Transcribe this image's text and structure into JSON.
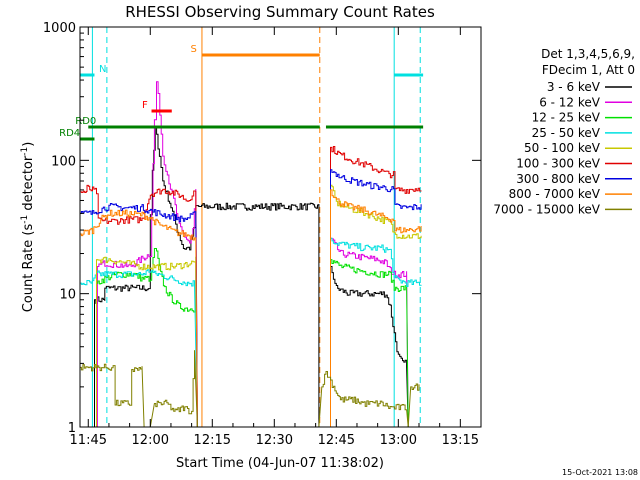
{
  "chart_data": {
    "type": "line",
    "title": "RHESSI Observing Summary Count Rates",
    "xlabel": "Start Time (04-Jun-07 11:38:02)",
    "ylabel_main": "Count Rate (s",
    "ylabel_sup1": "-1",
    "ylabel_mid": " detector",
    "ylabel_sup2": "-1",
    "ylabel_end": ")",
    "y_scale": "log",
    "ylim": [
      1,
      1000
    ],
    "xlim_minutes": [
      -17,
      80
    ],
    "x_ticks": [
      {
        "m": -15,
        "label": "11:45"
      },
      {
        "m": 0,
        "label": "12:00"
      },
      {
        "m": 15,
        "label": "12:15"
      },
      {
        "m": 30,
        "label": "12:30"
      },
      {
        "m": 45,
        "label": "12:45"
      },
      {
        "m": 60,
        "label": "13:00"
      },
      {
        "m": 75,
        "label": "13:15"
      }
    ],
    "y_tick_labels": [
      {
        "v": 1,
        "label": "1"
      },
      {
        "v": 10,
        "label": "10"
      },
      {
        "v": 100,
        "label": "100"
      },
      {
        "v": 1000,
        "label": "1000"
      }
    ],
    "legend_title": [
      "Det 1,3,4,5,6,9,",
      "FDecim 1, Att 0"
    ],
    "legend_placement": "right",
    "series": [
      {
        "name": "3 - 6 keV",
        "color": "#000000",
        "points": [
          [
            -17,
            1
          ],
          [
            -13.5,
            1
          ],
          [
            -13.5,
            9
          ],
          [
            -11,
            9
          ],
          [
            -11,
            11
          ],
          [
            -5,
            11
          ],
          [
            -5,
            11
          ],
          [
            -0.5,
            11
          ],
          [
            0,
            40
          ],
          [
            0.5,
            80
          ],
          [
            1.2,
            175
          ],
          [
            2.2,
            110
          ],
          [
            3,
            70
          ],
          [
            5,
            45
          ],
          [
            6.5,
            30
          ],
          [
            8,
            22
          ],
          [
            9.5,
            22
          ],
          [
            10.5,
            30
          ],
          [
            11,
            45
          ],
          [
            40.8,
            45
          ],
          [
            40.8,
            1
          ],
          [
            43.6,
            1
          ],
          [
            43.6,
            16
          ],
          [
            45,
            11
          ],
          [
            48,
            10
          ],
          [
            52,
            10
          ],
          [
            57,
            10
          ],
          [
            58,
            8
          ],
          [
            59,
            5
          ],
          [
            60,
            3.4
          ],
          [
            61,
            3
          ],
          [
            62,
            3
          ],
          [
            62.4,
            1
          ]
        ]
      },
      {
        "name": "6 - 12 keV",
        "color": "#e000e0",
        "points": [
          [
            -17,
            1
          ],
          [
            -12.8,
            1
          ],
          [
            -12.8,
            16
          ],
          [
            -11,
            17
          ],
          [
            -5,
            16
          ],
          [
            0,
            20
          ],
          [
            1,
            200
          ],
          [
            1.5,
            390
          ],
          [
            2.3,
            230
          ],
          [
            3,
            110
          ],
          [
            4.5,
            70
          ],
          [
            6,
            45
          ],
          [
            7,
            32
          ],
          [
            8,
            28
          ],
          [
            9.5,
            24
          ],
          [
            10.3,
            30
          ],
          [
            11,
            60
          ],
          [
            11.4,
            1
          ],
          [
            40.8,
            1
          ],
          [
            43.6,
            1
          ],
          [
            43.6,
            26
          ],
          [
            46,
            20
          ],
          [
            50,
            19
          ],
          [
            55,
            18
          ],
          [
            57,
            17
          ],
          [
            58,
            15
          ],
          [
            59,
            14
          ],
          [
            61,
            14
          ],
          [
            62,
            14
          ],
          [
            62.4,
            1
          ]
        ]
      },
      {
        "name": "12 - 25 keV",
        "color": "#00e000",
        "points": [
          [
            -17,
            1
          ],
          [
            -13,
            1
          ],
          [
            -13,
            12
          ],
          [
            -11,
            13
          ],
          [
            -8,
            14
          ],
          [
            -4,
            14
          ],
          [
            -2,
            13
          ],
          [
            -0.3,
            13
          ],
          [
            0,
            12
          ],
          [
            1,
            22
          ],
          [
            1.5,
            20
          ],
          [
            2.5,
            14
          ],
          [
            3.5,
            11
          ],
          [
            5,
            9.3
          ],
          [
            7,
            8
          ],
          [
            9,
            7.7
          ],
          [
            10.5,
            7.7
          ],
          [
            11,
            20
          ],
          [
            11.4,
            1
          ],
          [
            40.8,
            1
          ],
          [
            43.6,
            1
          ],
          [
            43.6,
            18
          ],
          [
            46,
            16
          ],
          [
            50,
            15
          ],
          [
            56,
            14
          ],
          [
            58,
            14
          ],
          [
            59,
            11
          ],
          [
            62,
            11
          ],
          [
            62.4,
            1
          ]
        ]
      },
      {
        "name": "25 - 50 keV",
        "color": "#00e0e0",
        "points": [
          [
            -17,
            12
          ],
          [
            -14,
            12
          ],
          [
            -13,
            14
          ],
          [
            -10,
            14
          ],
          [
            -6,
            14
          ],
          [
            -2,
            14
          ],
          [
            0,
            15
          ],
          [
            1,
            14
          ],
          [
            2,
            14
          ],
          [
            5,
            13
          ],
          [
            9,
            12
          ],
          [
            10.7,
            12
          ],
          [
            11.4,
            1
          ],
          [
            40.8,
            1
          ],
          [
            43.6,
            1
          ],
          [
            43.6,
            26
          ],
          [
            45,
            24
          ],
          [
            48,
            23
          ],
          [
            52,
            22
          ],
          [
            56,
            22
          ],
          [
            58,
            21
          ],
          [
            59,
            13
          ],
          [
            62,
            12
          ],
          [
            64,
            12
          ],
          [
            65.5,
            12
          ]
        ]
      },
      {
        "name": "50 - 100 keV",
        "color": "#c8c800",
        "points": [
          [
            -17,
            1
          ],
          [
            -13,
            1
          ],
          [
            -13,
            18
          ],
          [
            -10,
            18
          ],
          [
            -6,
            17
          ],
          [
            -2,
            16
          ],
          [
            0,
            16
          ],
          [
            2,
            16
          ],
          [
            6,
            16
          ],
          [
            10,
            17
          ],
          [
            11,
            17
          ],
          [
            11.4,
            1
          ],
          [
            40.8,
            1
          ],
          [
            43.6,
            1
          ],
          [
            43.6,
            65
          ],
          [
            45,
            48
          ],
          [
            48,
            44
          ],
          [
            52,
            40
          ],
          [
            56,
            36
          ],
          [
            58,
            34
          ],
          [
            59,
            28
          ],
          [
            62,
            27
          ],
          [
            65.5,
            27
          ]
        ]
      },
      {
        "name": "100 - 300 keV",
        "color": "#e00000",
        "points": [
          [
            -17,
            58
          ],
          [
            -15.5,
            58
          ],
          [
            -15.3,
            62
          ],
          [
            -13,
            58
          ],
          [
            -12.6,
            35
          ],
          [
            -9,
            35
          ],
          [
            -5,
            36
          ],
          [
            -2,
            36
          ],
          [
            0,
            56
          ],
          [
            3,
            60
          ],
          [
            5,
            58
          ],
          [
            7,
            55
          ],
          [
            9,
            50
          ],
          [
            10.5,
            58
          ],
          [
            11,
            58
          ],
          [
            11.4,
            1
          ],
          [
            40.8,
            1
          ],
          [
            43.6,
            1
          ],
          [
            43.6,
            125
          ],
          [
            46,
            110
          ],
          [
            49,
            100
          ],
          [
            53,
            90
          ],
          [
            57,
            80
          ],
          [
            58.8,
            78
          ],
          [
            59.2,
            60
          ],
          [
            62,
            60
          ],
          [
            65.5,
            62
          ]
        ]
      },
      {
        "name": "300 - 800 keV",
        "color": "#0000e0",
        "points": [
          [
            -17,
            40
          ],
          [
            -14,
            40
          ],
          [
            -13,
            42
          ],
          [
            -10,
            45
          ],
          [
            -6,
            44
          ],
          [
            -2,
            44
          ],
          [
            0,
            42
          ],
          [
            2,
            40
          ],
          [
            5,
            38
          ],
          [
            8,
            36
          ],
          [
            10,
            38
          ],
          [
            11,
            40
          ],
          [
            11.4,
            1
          ],
          [
            40.8,
            1
          ],
          [
            43.6,
            1
          ],
          [
            43.6,
            85
          ],
          [
            46,
            75
          ],
          [
            49,
            70
          ],
          [
            53,
            65
          ],
          [
            57,
            62
          ],
          [
            58.8,
            60
          ],
          [
            59.2,
            45
          ],
          [
            62,
            44
          ],
          [
            65.5,
            45
          ]
        ]
      },
      {
        "name": "800 - 7000 keV",
        "color": "#ff8000",
        "points": [
          [
            -17,
            28
          ],
          [
            -14,
            30
          ],
          [
            -12,
            36
          ],
          [
            -10,
            40
          ],
          [
            -6,
            40
          ],
          [
            -2,
            39
          ],
          [
            0,
            37
          ],
          [
            2,
            33
          ],
          [
            4,
            31
          ],
          [
            6,
            29
          ],
          [
            8,
            28
          ],
          [
            10,
            27
          ],
          [
            11,
            26
          ],
          [
            11.4,
            1
          ],
          [
            40.8,
            1
          ],
          [
            43.6,
            1
          ],
          [
            43.6,
            60
          ],
          [
            45,
            50
          ],
          [
            48,
            45
          ],
          [
            52,
            42
          ],
          [
            56,
            38
          ],
          [
            58.8,
            36
          ],
          [
            59.2,
            30
          ],
          [
            62,
            30
          ],
          [
            65.5,
            31
          ]
        ]
      },
      {
        "name": "7000 - 15000 keV",
        "color": "#808000",
        "points": [
          [
            -17,
            1
          ],
          [
            -17,
            2.8
          ],
          [
            -9,
            2.8
          ],
          [
            -8.5,
            1.5
          ],
          [
            -5,
            1.5
          ],
          [
            -4.5,
            2.7
          ],
          [
            -2,
            2.7
          ],
          [
            -1.5,
            1
          ],
          [
            0,
            1
          ],
          [
            1,
            1.5
          ],
          [
            4,
            1.5
          ],
          [
            6,
            1.3
          ],
          [
            8,
            1.4
          ],
          [
            10,
            1.3
          ],
          [
            10.7,
            4
          ],
          [
            11.4,
            1
          ],
          [
            40.8,
            1
          ],
          [
            41.5,
            2
          ],
          [
            42.5,
            2.6
          ],
          [
            44,
            2.1
          ],
          [
            46,
            1.6
          ],
          [
            49,
            1.6
          ],
          [
            52,
            1.5
          ],
          [
            56,
            1.5
          ],
          [
            58,
            1.4
          ],
          [
            62,
            1.4
          ],
          [
            62.4,
            1
          ],
          [
            63,
            2
          ],
          [
            65,
            2
          ]
        ]
      }
    ],
    "state_bars": [
      {
        "label": "N",
        "color": "#00e0e0",
        "level": 0.88,
        "segments": [
          [
            -17,
            -13.5
          ],
          [
            59,
            66
          ]
        ],
        "label_m": -11.5
      },
      {
        "label": "F",
        "color": "#ff0000",
        "level": 0.79,
        "segments": [
          [
            0.3,
            5.2
          ]
        ],
        "label_m": -1.3
      },
      {
        "label": "S",
        "color": "#ff8000",
        "level": 0.93,
        "segments": [
          [
            12.5,
            41
          ]
        ],
        "label_m": 10.5
      },
      {
        "label": "RD0",
        "color": "#008000",
        "level": 0.75,
        "segments": [
          [
            -15,
            41
          ],
          [
            42.5,
            66
          ]
        ],
        "label_m": -15.6
      },
      {
        "label": "RD4",
        "color": "#008000",
        "level": 0.72,
        "segments": [
          [
            -17,
            -13.5
          ]
        ],
        "label_m": -19.5
      }
    ],
    "vlines": [
      {
        "m": -14,
        "color": "#00e0e0",
        "dashed": false
      },
      {
        "m": -10.5,
        "color": "#00e0e0",
        "dashed": true
      },
      {
        "m": 12.5,
        "color": "#ff8000",
        "dashed": false
      },
      {
        "m": 41,
        "color": "#ff8000",
        "dashed": true
      },
      {
        "m": 59,
        "color": "#00e0e0",
        "dashed": false
      },
      {
        "m": 65.3,
        "color": "#00e0e0",
        "dashed": true
      }
    ]
  },
  "footer_stamp": "15-Oct-2021 13:08"
}
